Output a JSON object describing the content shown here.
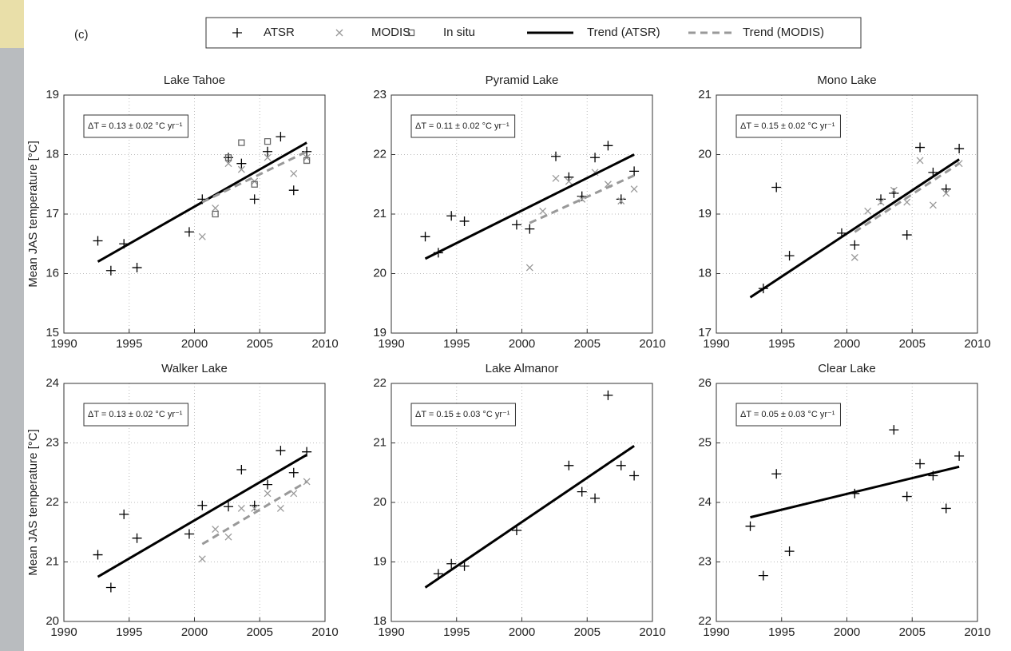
{
  "panel_label": "(c)",
  "chart_data": [
    {
      "type": "scatter",
      "title": "Lake Tahoe",
      "ylabel": "Mean JAS temperature [°C]",
      "annotation": "ΔT = 0.13 ± 0.02 °C yr⁻¹",
      "xlim": [
        1990,
        2010
      ],
      "xticks": [
        1990,
        1995,
        2000,
        2005,
        2010
      ],
      "ylim": [
        15,
        19
      ],
      "yticks": [
        15,
        16,
        17,
        18,
        19
      ],
      "grid": true,
      "series": [
        {
          "name": "ATSR",
          "color": "#000000",
          "marker": "plus",
          "x": [
            1992.6,
            1993.6,
            1994.6,
            1995.6,
            1999.6,
            2000.6,
            2002.6,
            2003.6,
            2004.6,
            2005.6,
            2006.6,
            2007.6,
            2008.6
          ],
          "values": [
            16.55,
            16.05,
            16.5,
            16.1,
            16.7,
            17.25,
            17.95,
            17.85,
            17.25,
            18.05,
            18.3,
            17.4,
            18.05
          ]
        },
        {
          "name": "MODIS",
          "color": "#999999",
          "marker": "cross",
          "x": [
            2000.6,
            2001.6,
            2002.6,
            2003.6,
            2004.6,
            2005.6,
            2007.6,
            2008.6
          ],
          "values": [
            16.62,
            17.1,
            17.85,
            17.75,
            17.55,
            17.95,
            17.68,
            17.95
          ]
        },
        {
          "name": "In situ",
          "color": "#666666",
          "marker": "square",
          "x": [
            2001.6,
            2002.6,
            2003.6,
            2004.6,
            2005.6,
            2008.6
          ],
          "values": [
            17.0,
            17.95,
            18.2,
            17.5,
            18.22,
            17.9
          ]
        },
        {
          "name": "Trend (ATSR)",
          "color": "#000000",
          "marker": "line",
          "x": [
            1992.6,
            2008.6
          ],
          "values": [
            16.2,
            18.2
          ]
        },
        {
          "name": "Trend (MODIS)",
          "color": "#999999",
          "marker": "dashed",
          "x": [
            2000.6,
            2008.6
          ],
          "values": [
            17.2,
            18.05
          ]
        }
      ]
    },
    {
      "type": "scatter",
      "title": "Pyramid Lake",
      "annotation": "ΔT = 0.11 ± 0.02 °C yr⁻¹",
      "xlim": [
        1990,
        2010
      ],
      "xticks": [
        1990,
        1995,
        2000,
        2005,
        2010
      ],
      "ylim": [
        19,
        23
      ],
      "yticks": [
        19,
        20,
        21,
        22,
        23
      ],
      "grid": true,
      "series": [
        {
          "name": "ATSR",
          "color": "#000000",
          "marker": "plus",
          "x": [
            1992.6,
            1993.6,
            1994.6,
            1995.6,
            1999.6,
            2000.6,
            2002.6,
            2003.6,
            2004.6,
            2005.6,
            2006.6,
            2007.6,
            2008.6
          ],
          "values": [
            20.62,
            20.35,
            20.97,
            20.88,
            20.82,
            20.75,
            21.97,
            21.62,
            21.3,
            21.95,
            22.15,
            21.25,
            21.72
          ]
        },
        {
          "name": "MODIS",
          "color": "#999999",
          "marker": "cross",
          "x": [
            2000.6,
            2001.6,
            2002.6,
            2003.6,
            2004.6,
            2005.6,
            2006.6,
            2007.6,
            2008.6
          ],
          "values": [
            20.1,
            21.05,
            21.6,
            21.55,
            21.25,
            21.7,
            21.5,
            21.22,
            21.42
          ]
        },
        {
          "name": "Trend (ATSR)",
          "color": "#000000",
          "marker": "line",
          "x": [
            1992.6,
            2008.6
          ],
          "values": [
            20.25,
            22.0
          ]
        },
        {
          "name": "Trend (MODIS)",
          "color": "#999999",
          "marker": "dashed",
          "x": [
            2000.6,
            2008.6
          ],
          "values": [
            20.85,
            21.65
          ]
        }
      ]
    },
    {
      "type": "scatter",
      "title": "Mono Lake",
      "annotation": "ΔT = 0.15 ± 0.02 °C yr⁻¹",
      "xlim": [
        1990,
        2010
      ],
      "xticks": [
        1990,
        1995,
        2000,
        2005,
        2010
      ],
      "ylim": [
        17,
        21
      ],
      "yticks": [
        17,
        18,
        19,
        20,
        21
      ],
      "grid": true,
      "series": [
        {
          "name": "ATSR",
          "color": "#000000",
          "marker": "plus",
          "x": [
            1993.6,
            1994.6,
            1995.6,
            1999.6,
            2000.6,
            2002.6,
            2003.6,
            2004.6,
            2005.6,
            2006.6,
            2007.6,
            2008.6
          ],
          "values": [
            17.75,
            19.45,
            18.3,
            18.68,
            18.48,
            19.25,
            19.35,
            18.65,
            20.12,
            19.7,
            19.42,
            20.1
          ]
        },
        {
          "name": "MODIS",
          "color": "#999999",
          "marker": "cross",
          "x": [
            2000.6,
            2001.6,
            2002.6,
            2003.6,
            2004.6,
            2005.6,
            2006.6,
            2007.6,
            2008.6
          ],
          "values": [
            18.27,
            19.05,
            19.2,
            19.4,
            19.2,
            19.9,
            19.15,
            19.35,
            19.85
          ]
        },
        {
          "name": "Trend (ATSR)",
          "color": "#000000",
          "marker": "line",
          "x": [
            1992.6,
            2008.6
          ],
          "values": [
            17.6,
            19.92
          ]
        },
        {
          "name": "Trend (MODIS)",
          "color": "#999999",
          "marker": "dashed",
          "x": [
            2000.6,
            2008.6
          ],
          "values": [
            18.7,
            19.85
          ]
        }
      ]
    },
    {
      "type": "scatter",
      "title": "Walker Lake",
      "ylabel": "Mean JAS temperature [°C]",
      "annotation": "ΔT = 0.13 ± 0.02 °C yr⁻¹",
      "xlim": [
        1990,
        2010
      ],
      "xticks": [
        1990,
        1995,
        2000,
        2005,
        2010
      ],
      "ylim": [
        20,
        24
      ],
      "yticks": [
        20,
        21,
        22,
        23,
        24
      ],
      "grid": true,
      "series": [
        {
          "name": "ATSR",
          "color": "#000000",
          "marker": "plus",
          "x": [
            1992.6,
            1993.6,
            1994.6,
            1995.6,
            1999.6,
            2000.6,
            2002.6,
            2003.6,
            2004.6,
            2005.6,
            2006.6,
            2007.6,
            2008.6
          ],
          "values": [
            21.12,
            20.57,
            21.8,
            21.4,
            21.47,
            21.95,
            21.93,
            22.55,
            21.95,
            22.3,
            22.87,
            22.5,
            22.85
          ]
        },
        {
          "name": "MODIS",
          "color": "#999999",
          "marker": "cross",
          "x": [
            2000.6,
            2001.6,
            2002.6,
            2003.6,
            2004.6,
            2005.6,
            2006.6,
            2007.6,
            2008.6
          ],
          "values": [
            21.05,
            21.55,
            21.42,
            21.9,
            21.9,
            22.15,
            21.9,
            22.15,
            22.35
          ]
        },
        {
          "name": "Trend (ATSR)",
          "color": "#000000",
          "marker": "line",
          "x": [
            1992.6,
            2008.6
          ],
          "values": [
            20.75,
            22.8
          ]
        },
        {
          "name": "Trend (MODIS)",
          "color": "#999999",
          "marker": "dashed",
          "x": [
            2000.6,
            2008.6
          ],
          "values": [
            21.3,
            22.35
          ]
        }
      ]
    },
    {
      "type": "scatter",
      "title": "Lake Almanor",
      "annotation": "ΔT = 0.15 ± 0.03 °C yr⁻¹",
      "xlim": [
        1990,
        2010
      ],
      "xticks": [
        1990,
        1995,
        2000,
        2005,
        2010
      ],
      "ylim": [
        18,
        22
      ],
      "yticks": [
        18,
        19,
        20,
        21,
        22
      ],
      "grid": true,
      "series": [
        {
          "name": "ATSR",
          "color": "#000000",
          "marker": "plus",
          "x": [
            1993.6,
            1994.6,
            1995.6,
            1999.6,
            2003.6,
            2004.6,
            2005.6,
            2006.6,
            2007.6,
            2008.6
          ],
          "values": [
            18.8,
            18.97,
            18.93,
            19.53,
            20.62,
            20.18,
            20.07,
            21.8,
            20.62,
            20.45
          ]
        },
        {
          "name": "Trend (ATSR)",
          "color": "#000000",
          "marker": "line",
          "x": [
            1992.6,
            2008.6
          ],
          "values": [
            18.57,
            20.95
          ]
        }
      ]
    },
    {
      "type": "scatter",
      "title": "Clear Lake",
      "annotation": "ΔT = 0.05 ± 0.03 °C yr⁻¹",
      "xlim": [
        1990,
        2010
      ],
      "xticks": [
        1990,
        1995,
        2000,
        2005,
        2010
      ],
      "ylim": [
        22,
        26
      ],
      "yticks": [
        22,
        23,
        24,
        25,
        26
      ],
      "grid": true,
      "series": [
        {
          "name": "ATSR",
          "color": "#000000",
          "marker": "plus",
          "x": [
            1992.6,
            1993.6,
            1994.6,
            1995.6,
            2000.6,
            2003.6,
            2004.6,
            2005.6,
            2006.6,
            2007.6,
            2008.6
          ],
          "values": [
            23.6,
            22.77,
            24.48,
            23.18,
            24.15,
            25.22,
            24.1,
            24.65,
            24.45,
            23.9,
            24.78
          ]
        },
        {
          "name": "Trend (ATSR)",
          "color": "#000000",
          "marker": "line",
          "x": [
            1992.6,
            2008.6
          ],
          "values": [
            23.75,
            24.6
          ]
        }
      ]
    }
  ]
}
